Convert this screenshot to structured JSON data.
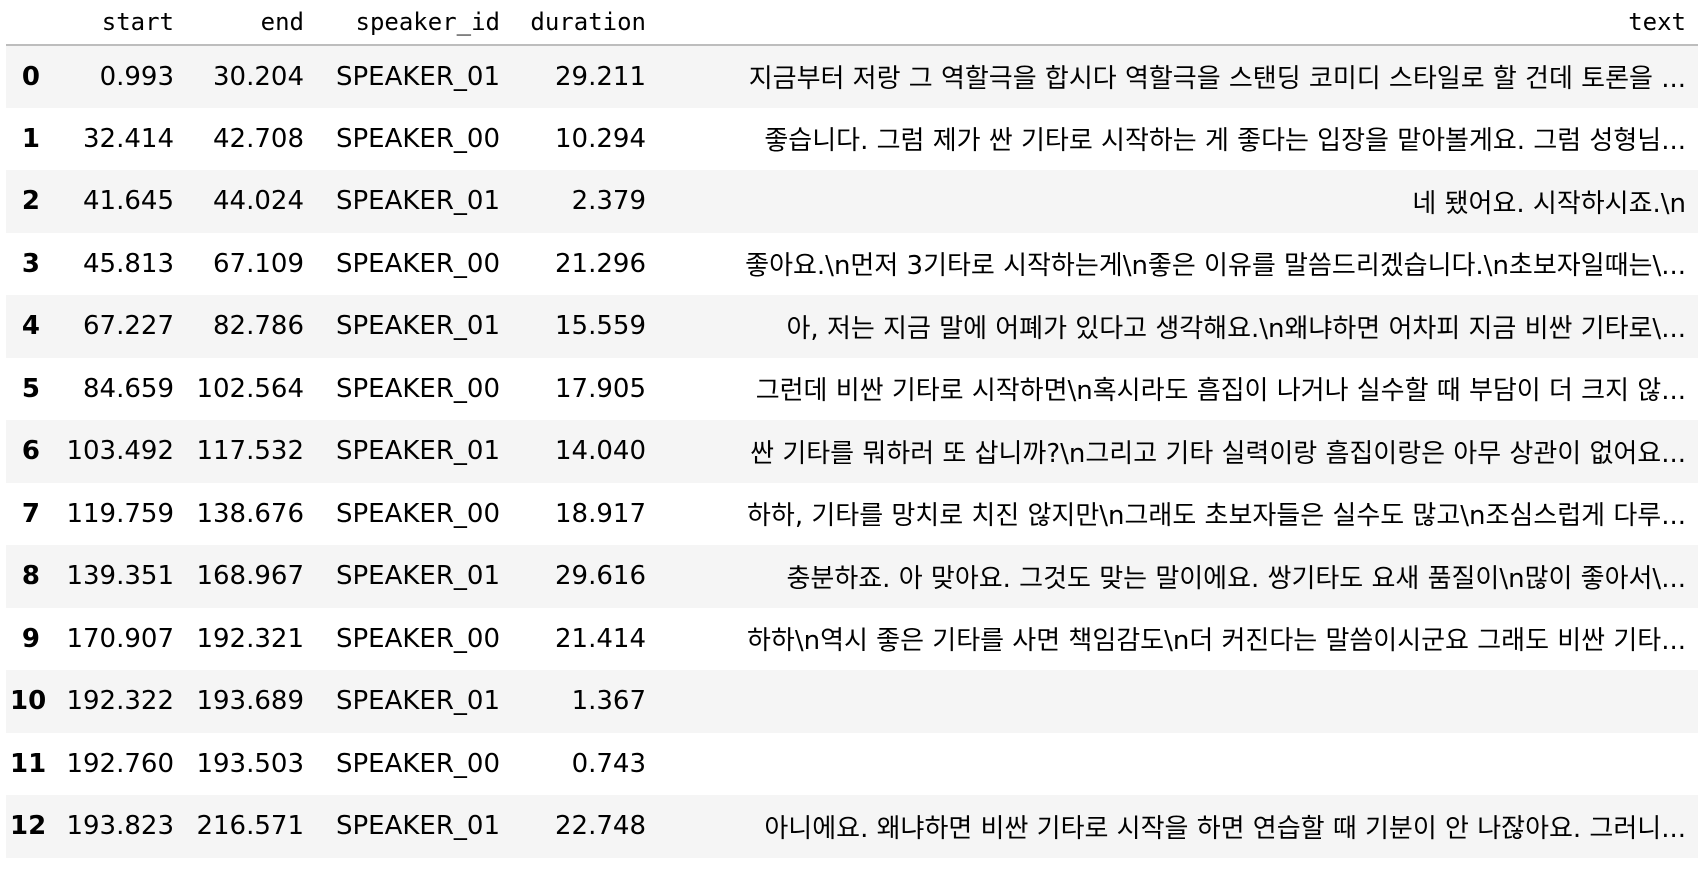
{
  "table": {
    "columns": [
      "",
      "start",
      "end",
      "speaker_id",
      "duration",
      "text"
    ],
    "rows": [
      {
        "index": "0",
        "start": "0.993",
        "end": "30.204",
        "speaker_id": "SPEAKER_01",
        "duration": "29.211",
        "text": "지금부터 저랑 그 역할극을 합시다 역할극을 스탠딩 코미디 스타일로 할 건데 토론을 ..."
      },
      {
        "index": "1",
        "start": "32.414",
        "end": "42.708",
        "speaker_id": "SPEAKER_00",
        "duration": "10.294",
        "text": "좋습니다. 그럼 제가 싼 기타로 시작하는 게 좋다는 입장을 맡아볼게요. 그럼 성형님..."
      },
      {
        "index": "2",
        "start": "41.645",
        "end": "44.024",
        "speaker_id": "SPEAKER_01",
        "duration": "2.379",
        "text": "네 됐어요. 시작하시죠.\\n"
      },
      {
        "index": "3",
        "start": "45.813",
        "end": "67.109",
        "speaker_id": "SPEAKER_00",
        "duration": "21.296",
        "text": "좋아요.\\n먼저 3기타로 시작하는게\\n좋은 이유를 말씀드리겠습니다.\\n초보자일때는\\..."
      },
      {
        "index": "4",
        "start": "67.227",
        "end": "82.786",
        "speaker_id": "SPEAKER_01",
        "duration": "15.559",
        "text": "아, 저는 지금 말에 어폐가 있다고 생각해요.\\n왜냐하면 어차피 지금 비싼 기타로\\..."
      },
      {
        "index": "5",
        "start": "84.659",
        "end": "102.564",
        "speaker_id": "SPEAKER_00",
        "duration": "17.905",
        "text": "그런데 비싼 기타로 시작하면\\n혹시라도 흠집이 나거나 실수할 때 부담이 더 크지 않..."
      },
      {
        "index": "6",
        "start": "103.492",
        "end": "117.532",
        "speaker_id": "SPEAKER_01",
        "duration": "14.040",
        "text": "싼 기타를 뭐하러 또 삽니까?\\n그리고 기타 실력이랑 흠집이랑은 아무 상관이 없어요..."
      },
      {
        "index": "7",
        "start": "119.759",
        "end": "138.676",
        "speaker_id": "SPEAKER_00",
        "duration": "18.917",
        "text": "하하, 기타를 망치로 치진 않지만\\n그래도 초보자들은 실수도 많고\\n조심스럽게 다루..."
      },
      {
        "index": "8",
        "start": "139.351",
        "end": "168.967",
        "speaker_id": "SPEAKER_01",
        "duration": "29.616",
        "text": "충분하죠. 아 맞아요. 그것도 맞는 말이에요. 쌍기타도 요새 품질이\\n많이 좋아서\\..."
      },
      {
        "index": "9",
        "start": "170.907",
        "end": "192.321",
        "speaker_id": "SPEAKER_00",
        "duration": "21.414",
        "text": "하하\\n역시 좋은 기타를 사면 책임감도\\n더 커진다는 말씀이시군요 그래도 비싼 기타..."
      },
      {
        "index": "10",
        "start": "192.322",
        "end": "193.689",
        "speaker_id": "SPEAKER_01",
        "duration": "1.367",
        "text": ""
      },
      {
        "index": "11",
        "start": "192.760",
        "end": "193.503",
        "speaker_id": "SPEAKER_00",
        "duration": "0.743",
        "text": ""
      },
      {
        "index": "12",
        "start": "193.823",
        "end": "216.571",
        "speaker_id": "SPEAKER_01",
        "duration": "22.748",
        "text": "아니에요. 왜냐하면 비싼 기타로 시작을 하면 연습할 때 기분이 안 나잖아요. 그러니..."
      }
    ]
  }
}
